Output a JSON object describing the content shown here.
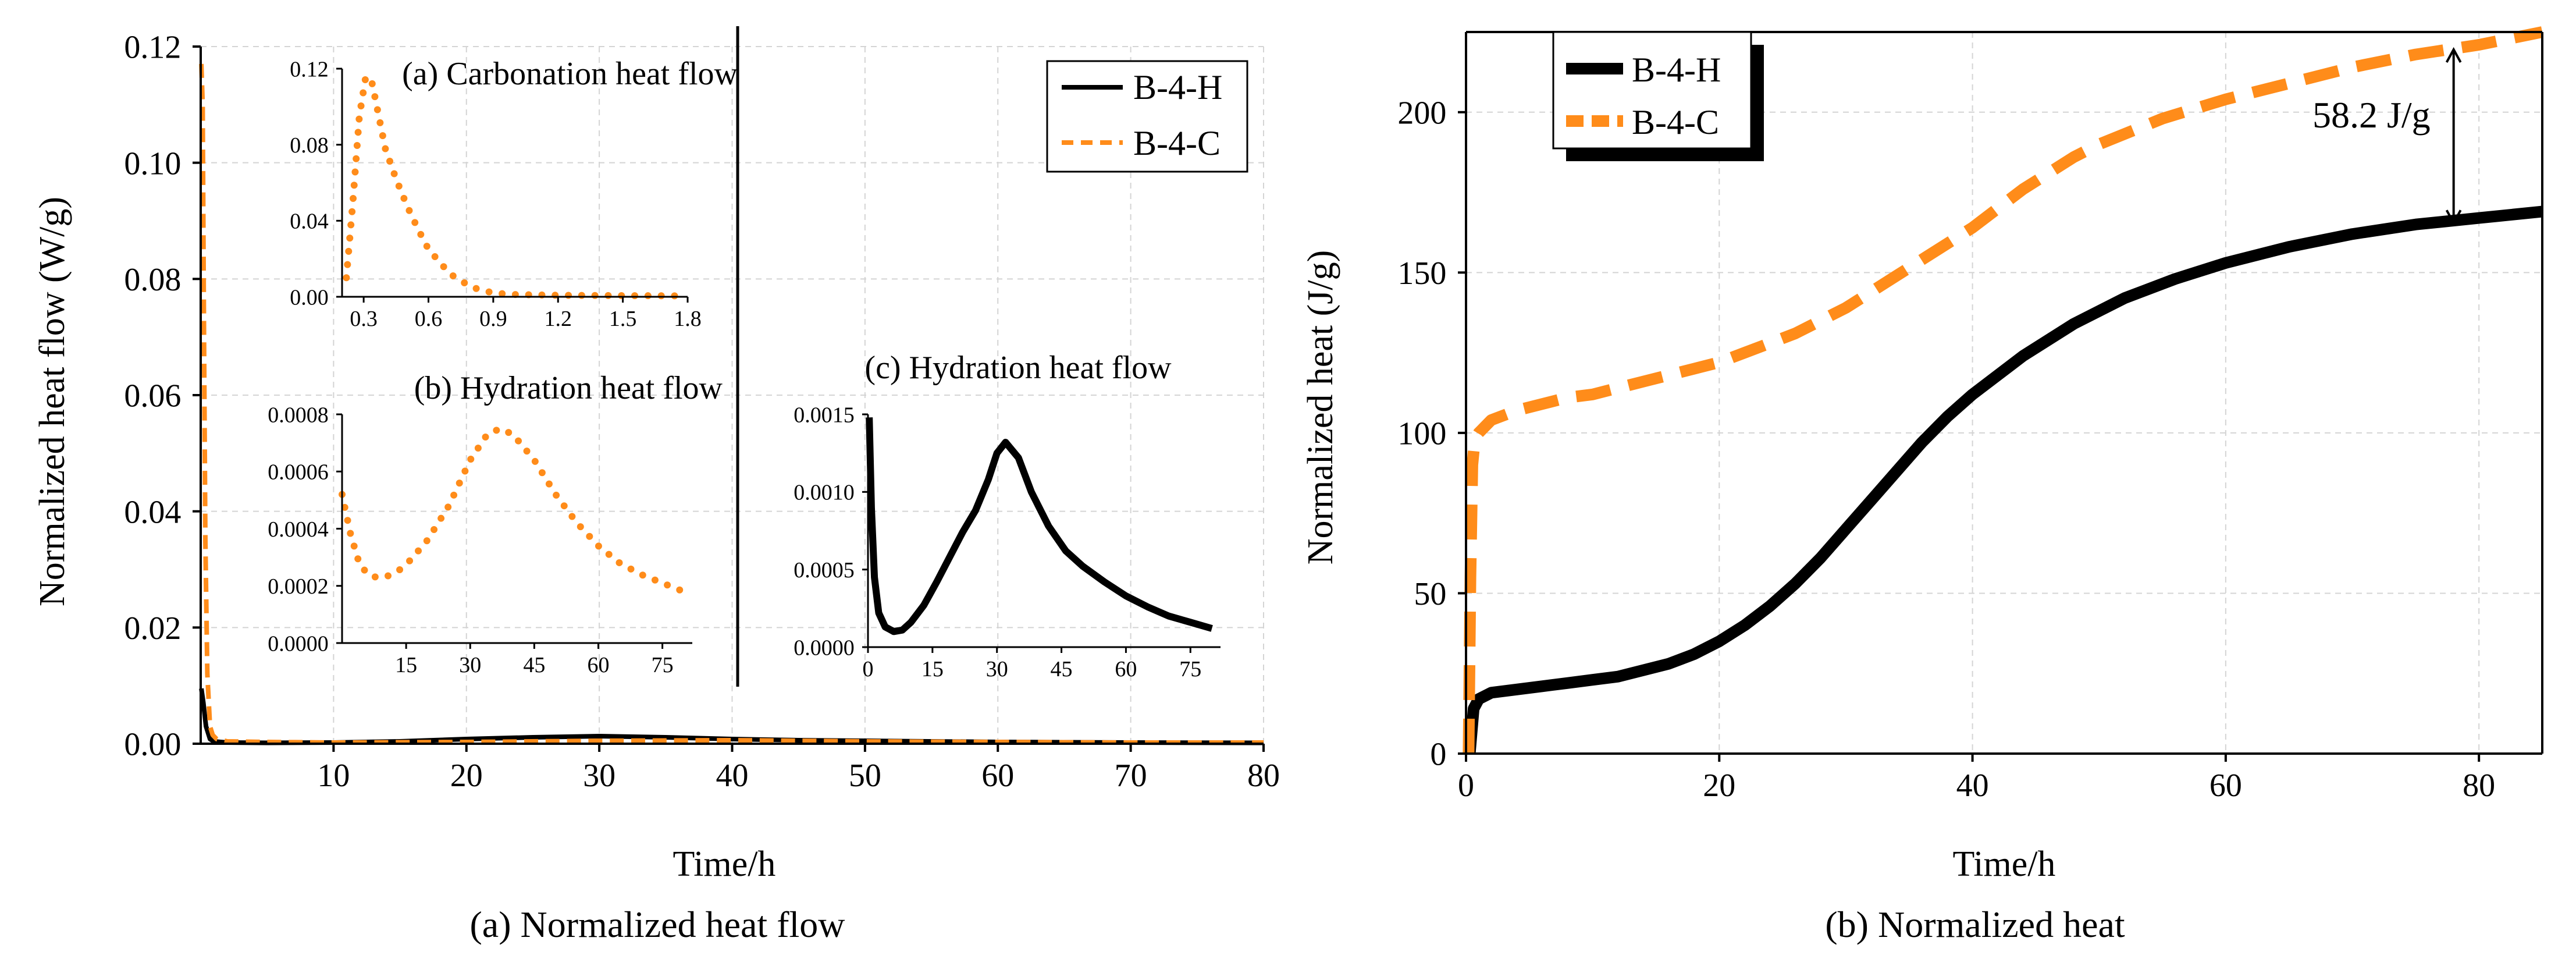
{
  "colors": {
    "hydration": "#000000",
    "carbonation": "#ff8c1a",
    "grid": "#d4d4d4",
    "axis": "#000000"
  },
  "chart_data": [
    {
      "id": "heatflow",
      "type": "line",
      "caption": "(a) Normalized heat flow",
      "xlabel": "Time/h",
      "ylabel": "Normalized heat flow (W/g)",
      "xlim": [
        0,
        80
      ],
      "ylim": [
        0,
        0.12
      ],
      "xticks": [
        10,
        20,
        30,
        40,
        50,
        60,
        70,
        80
      ],
      "xtick_labels": [
        "10",
        "20",
        "30",
        "40",
        "50",
        "60",
        "70",
        "80"
      ],
      "yticks": [
        0,
        0.02,
        0.04,
        0.06,
        0.08,
        0.1,
        0.12
      ],
      "ytick_labels": [
        "0.00",
        "0.02",
        "0.04",
        "0.06",
        "0.08",
        "0.10",
        "0.12"
      ],
      "legend": {
        "placement": "top-right",
        "entries": [
          "B-4-H",
          "B-4-C"
        ]
      },
      "series": [
        {
          "name": "B-4-H",
          "style": "solid",
          "x": [
            0.05,
            0.2,
            0.4,
            0.7,
            1,
            2,
            5,
            10,
            15,
            20,
            25,
            30,
            35,
            40,
            45,
            50,
            60,
            70,
            80
          ],
          "y": [
            0.0095,
            0.007,
            0.003,
            0.0008,
            0.0004,
            0.0002,
            0.00015,
            0.0002,
            0.0004,
            0.0008,
            0.0011,
            0.0013,
            0.0011,
            0.0008,
            0.0006,
            0.0005,
            0.0003,
            0.0002,
            0.00015
          ]
        },
        {
          "name": "B-4-C",
          "style": "dashed",
          "x": [
            0.05,
            0.15,
            0.25,
            0.35,
            0.5,
            0.7,
            0.9,
            1.2,
            2,
            5,
            10,
            20,
            30,
            40,
            50,
            60,
            70,
            80
          ],
          "y": [
            0.117,
            0.11,
            0.07,
            0.035,
            0.012,
            0.003,
            0.0015,
            0.0008,
            0.0004,
            0.0003,
            0.0002,
            0.0003,
            0.0005,
            0.0006,
            0.0004,
            0.0003,
            0.0002,
            0.0002
          ]
        }
      ]
    },
    {
      "id": "inset_a",
      "type": "line",
      "title": "(a) Carbonation heat flow",
      "xlim": [
        0.2,
        1.8
      ],
      "ylim": [
        0,
        0.12
      ],
      "xticks": [
        0.3,
        0.6,
        0.9,
        1.2,
        1.5,
        1.8
      ],
      "xtick_labels": [
        "0.3",
        "0.6",
        "0.9",
        "1.2",
        "1.5",
        "1.8"
      ],
      "yticks": [
        0,
        0.04,
        0.08,
        0.12
      ],
      "ytick_labels": [
        "0.00",
        "0.04",
        "0.08",
        "0.12"
      ],
      "series": [
        {
          "name": "B-4-C",
          "style": "dotted",
          "x": [
            0.22,
            0.25,
            0.28,
            0.31,
            0.34,
            0.37,
            0.4,
            0.45,
            0.5,
            0.55,
            0.6,
            0.7,
            0.8,
            0.9,
            1.0,
            1.2,
            1.5,
            1.75
          ],
          "y": [
            0.01,
            0.05,
            0.095,
            0.116,
            0.112,
            0.095,
            0.078,
            0.062,
            0.048,
            0.036,
            0.025,
            0.012,
            0.005,
            0.002,
            0.0012,
            0.0008,
            0.0006,
            0.0005
          ]
        }
      ]
    },
    {
      "id": "inset_b",
      "type": "line",
      "title": "(b) Hydration heat flow",
      "xlim": [
        0,
        82
      ],
      "ylim": [
        0,
        0.0008
      ],
      "xticks": [
        15,
        30,
        45,
        60,
        75
      ],
      "xtick_labels": [
        "15",
        "30",
        "45",
        "60",
        "75"
      ],
      "yticks": [
        0,
        0.0002,
        0.0004,
        0.0006,
        0.0008
      ],
      "ytick_labels": [
        "0.0000",
        "0.0002",
        "0.0004",
        "0.0006",
        "0.0008"
      ],
      "series": [
        {
          "name": "B-4-C",
          "style": "dotted",
          "x": [
            0,
            2,
            4,
            6,
            8,
            10,
            13,
            16,
            20,
            25,
            30,
            34,
            37,
            40,
            45,
            50,
            55,
            60,
            65,
            70,
            75,
            80
          ],
          "y": [
            0.00052,
            0.00038,
            0.00028,
            0.00024,
            0.00023,
            0.00023,
            0.00025,
            0.00029,
            0.00036,
            0.00048,
            0.00064,
            0.00073,
            0.00075,
            0.00073,
            0.00064,
            0.00052,
            0.00042,
            0.00034,
            0.00028,
            0.00024,
            0.00021,
            0.00018
          ]
        }
      ]
    },
    {
      "id": "inset_c",
      "type": "line",
      "title": "(c) Hydration heat flow",
      "xlim": [
        0,
        82
      ],
      "ylim": [
        0,
        0.0015
      ],
      "xticks": [
        0,
        15,
        30,
        45,
        60,
        75
      ],
      "xtick_labels": [
        "0",
        "15",
        "30",
        "45",
        "60",
        "75"
      ],
      "yticks": [
        0,
        0.0005,
        0.001,
        0.0015
      ],
      "ytick_labels": [
        "0.0000",
        "0.0005",
        "0.0010",
        "0.0015"
      ],
      "series": [
        {
          "name": "B-4-H",
          "style": "solid",
          "x": [
            0.3,
            0.8,
            1.5,
            2.5,
            4,
            6,
            8,
            10,
            13,
            16,
            19,
            22,
            25,
            28,
            30,
            32,
            35,
            38,
            42,
            46,
            50,
            55,
            60,
            65,
            70,
            75,
            80
          ],
          "y": [
            0.00148,
            0.0009,
            0.00045,
            0.00022,
            0.00013,
            0.0001,
            0.00011,
            0.00016,
            0.00027,
            0.00042,
            0.00058,
            0.00074,
            0.00088,
            0.00108,
            0.00125,
            0.00132,
            0.00122,
            0.001,
            0.00078,
            0.00062,
            0.00052,
            0.00042,
            0.00033,
            0.00026,
            0.0002,
            0.00016,
            0.00012
          ]
        }
      ]
    },
    {
      "id": "heat",
      "type": "line",
      "caption": "(b) Normalized heat",
      "xlabel": "Time/h",
      "ylabel": "Normalized heat (J/g)",
      "xlim": [
        0,
        85
      ],
      "ylim": [
        0,
        225
      ],
      "xticks": [
        0,
        20,
        40,
        60,
        80
      ],
      "xtick_labels": [
        "0",
        "20",
        "40",
        "60",
        "80"
      ],
      "yticks": [
        0,
        50,
        100,
        150,
        200
      ],
      "ytick_labels": [
        "0",
        "50",
        "100",
        "150",
        "200"
      ],
      "legend": {
        "placement": "top-left",
        "entries": [
          "B-4-H",
          "B-4-C"
        ]
      },
      "annotation": {
        "text": "58.2 J/g",
        "x": 78,
        "y_top": 225,
        "y_bottom": 164
      },
      "series": [
        {
          "name": "B-4-H",
          "style": "solid",
          "x": [
            0.3,
            0.6,
            1,
            2,
            4,
            6,
            8,
            10,
            12,
            14,
            16,
            18,
            20,
            22,
            24,
            26,
            28,
            30,
            32,
            34,
            36,
            38,
            40,
            44,
            48,
            52,
            56,
            60,
            65,
            70,
            75,
            80,
            85
          ],
          "y": [
            0,
            14,
            17,
            19,
            20,
            21,
            22,
            23,
            24,
            26,
            28,
            31,
            35,
            40,
            46,
            53,
            61,
            70,
            79,
            88,
            97,
            105,
            112,
            124,
            134,
            142,
            148,
            153,
            158,
            162,
            165,
            167,
            169
          ]
        },
        {
          "name": "B-4-C",
          "style": "dashed",
          "x": [
            0.2,
            0.35,
            0.5,
            0.7,
            1,
            1.5,
            2,
            4,
            6,
            8,
            10,
            12,
            14,
            16,
            18,
            20,
            22,
            24,
            26,
            28,
            30,
            32,
            34,
            36,
            38,
            40,
            42,
            44,
            46,
            48,
            50,
            55,
            60,
            65,
            70,
            75,
            80,
            85
          ],
          "y": [
            0,
            55,
            90,
            98,
            100,
            102,
            104,
            107,
            109,
            111,
            112,
            114,
            116,
            118,
            120,
            122,
            125,
            128,
            131,
            135,
            139,
            144,
            149,
            154,
            159,
            164,
            170,
            176,
            181,
            186,
            190,
            198,
            204,
            209,
            214,
            218,
            221,
            225
          ]
        }
      ]
    }
  ]
}
